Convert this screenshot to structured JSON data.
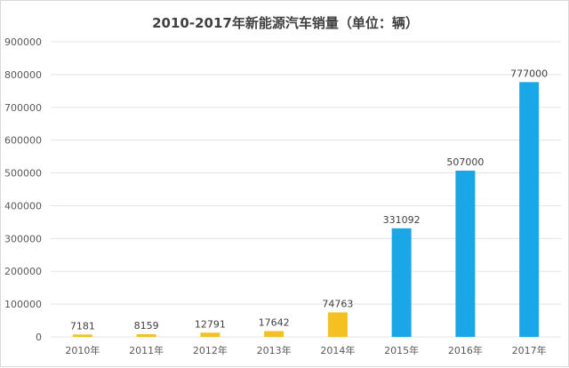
{
  "chart_data": {
    "type": "bar",
    "title": "2010-2017年新能源汽车销量（单位：辆）",
    "categories": [
      "2010年",
      "2011年",
      "2012年",
      "2013年",
      "2014年",
      "2015年",
      "2016年",
      "2017年"
    ],
    "values": [
      7181,
      8159,
      12791,
      17642,
      74763,
      331092,
      507000,
      777000
    ],
    "data_labels": [
      "7181",
      "8159",
      "12791",
      "17642",
      "74763",
      "331092",
      "507000",
      "777000"
    ],
    "bar_colors": [
      "#f5c022",
      "#f5c022",
      "#f5c022",
      "#f5c022",
      "#f5c022",
      "#1aa7e8",
      "#1aa7e8",
      "#1aa7e8"
    ],
    "ylim": [
      0,
      900000
    ],
    "y_ticks": [
      "0",
      "100000",
      "200000",
      "300000",
      "400000",
      "500000",
      "600000",
      "700000",
      "800000",
      "900000"
    ],
    "y_tick_values": [
      0,
      100000,
      200000,
      300000,
      400000,
      500000,
      600000,
      700000,
      800000,
      900000
    ],
    "grid": true,
    "legend": "none"
  }
}
